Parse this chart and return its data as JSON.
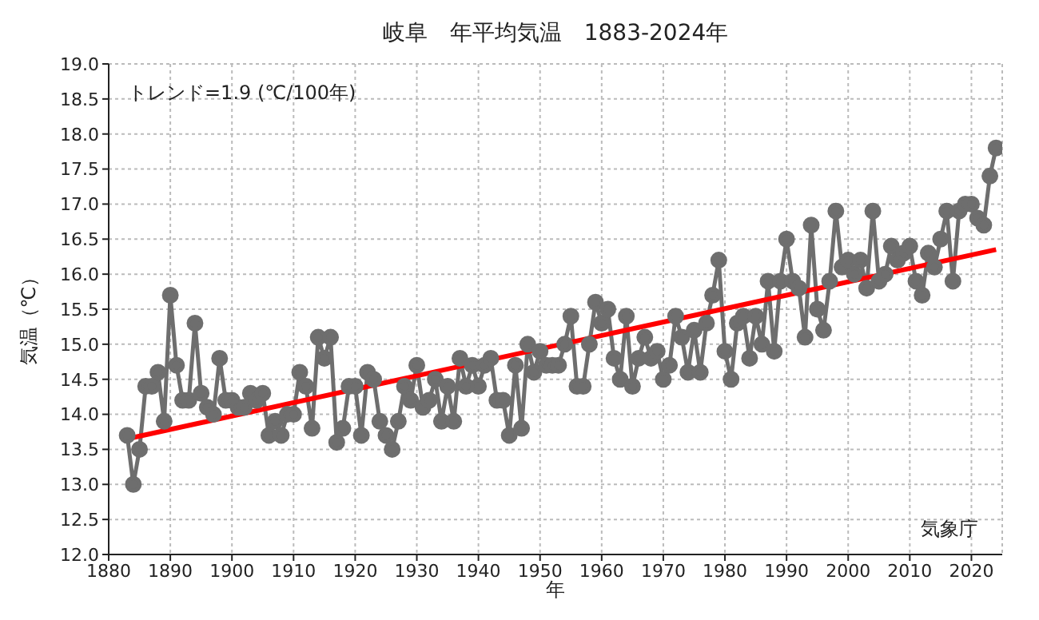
{
  "chart_data": {
    "type": "line",
    "title": "岐阜　年平均気温　1883-2024年",
    "xlabel": "年",
    "ylabel": "気温（℃）",
    "annotations": [
      "トレンド=1.9 (℃/100年)",
      "気象庁"
    ],
    "x": [
      1883,
      1884,
      1885,
      1886,
      1887,
      1888,
      1889,
      1890,
      1891,
      1892,
      1893,
      1894,
      1895,
      1896,
      1897,
      1898,
      1899,
      1900,
      1901,
      1902,
      1903,
      1904,
      1905,
      1906,
      1907,
      1908,
      1909,
      1910,
      1911,
      1912,
      1913,
      1914,
      1915,
      1916,
      1917,
      1918,
      1919,
      1920,
      1921,
      1922,
      1923,
      1924,
      1925,
      1926,
      1927,
      1928,
      1929,
      1930,
      1931,
      1932,
      1933,
      1934,
      1935,
      1936,
      1937,
      1938,
      1939,
      1940,
      1941,
      1942,
      1943,
      1944,
      1945,
      1946,
      1947,
      1948,
      1949,
      1950,
      1951,
      1952,
      1953,
      1954,
      1955,
      1956,
      1957,
      1958,
      1959,
      1960,
      1961,
      1962,
      1963,
      1964,
      1965,
      1966,
      1967,
      1968,
      1969,
      1970,
      1971,
      1972,
      1973,
      1974,
      1975,
      1976,
      1977,
      1978,
      1979,
      1980,
      1981,
      1982,
      1983,
      1984,
      1985,
      1986,
      1987,
      1988,
      1989,
      1990,
      1991,
      1992,
      1993,
      1994,
      1995,
      1996,
      1997,
      1998,
      1999,
      2000,
      2001,
      2002,
      2003,
      2004,
      2005,
      2006,
      2007,
      2008,
      2009,
      2010,
      2011,
      2012,
      2013,
      2014,
      2015,
      2016,
      2017,
      2018,
      2019,
      2020,
      2021,
      2022,
      2023,
      2024
    ],
    "series": [
      {
        "color": "#6e6e6e",
        "marker": "circle",
        "values": [
          13.7,
          13.0,
          13.5,
          14.4,
          14.4,
          14.6,
          13.9,
          15.7,
          14.7,
          14.2,
          14.2,
          15.3,
          14.3,
          14.1,
          14.0,
          14.8,
          14.2,
          14.2,
          14.1,
          14.1,
          14.3,
          14.2,
          14.3,
          13.7,
          13.9,
          13.7,
          14.0,
          14.0,
          14.6,
          14.4,
          13.8,
          15.1,
          14.8,
          15.1,
          13.6,
          13.8,
          14.4,
          14.4,
          13.7,
          14.6,
          14.5,
          13.9,
          13.7,
          13.5,
          13.9,
          14.4,
          14.2,
          14.7,
          14.1,
          14.2,
          14.5,
          13.9,
          14.4,
          13.9,
          14.8,
          14.4,
          14.7,
          14.4,
          14.7,
          14.8,
          14.2,
          14.2,
          13.7,
          14.7,
          13.8,
          15.0,
          14.6,
          14.9,
          14.7,
          14.7,
          14.7,
          15.0,
          15.4,
          14.4,
          14.4,
          15.0,
          15.6,
          15.3,
          15.5,
          14.8,
          14.5,
          15.4,
          14.4,
          14.8,
          15.1,
          14.8,
          14.9,
          14.5,
          14.7,
          15.4,
          15.1,
          14.6,
          15.2,
          14.6,
          15.3,
          15.7,
          16.2,
          14.9,
          14.5,
          15.3,
          15.4,
          14.8,
          15.4,
          15.0,
          15.9,
          14.9,
          15.9,
          16.5,
          15.9,
          15.8,
          15.1,
          16.7,
          15.5,
          15.2,
          15.9,
          16.9,
          16.1,
          16.2,
          16.0,
          16.2,
          15.8,
          16.9,
          15.9,
          16.0,
          16.4,
          16.2,
          16.3,
          16.4,
          15.9,
          15.7,
          16.3,
          16.1,
          16.5,
          16.9,
          15.9,
          16.9,
          17.0,
          17.0,
          16.8,
          16.7,
          17.4,
          17.8
        ]
      },
      {
        "type": "line",
        "color": "#ff0000",
        "marker": "none",
        "x": [
          1883,
          2024
        ],
        "values": [
          13.65,
          16.35
        ]
      }
    ],
    "xlim": [
      1880,
      2025
    ],
    "xticks": [
      1880,
      1890,
      1900,
      1910,
      1920,
      1930,
      1940,
      1950,
      1960,
      1970,
      1980,
      1990,
      2000,
      2010,
      2020
    ],
    "ylim": [
      12,
      19
    ],
    "yticks": [
      {
        "value": 12,
        "label": "12.0"
      },
      {
        "value": 12.5,
        "label": "12.5"
      },
      {
        "value": 13,
        "label": "13.0"
      },
      {
        "value": 13.5,
        "label": "13.5"
      },
      {
        "value": 14,
        "label": "14.0"
      },
      {
        "value": 14.5,
        "label": "14.5"
      },
      {
        "value": 15,
        "label": "15.0"
      },
      {
        "value": 15.5,
        "label": "15.5"
      },
      {
        "value": 16,
        "label": "16.0"
      },
      {
        "value": 16.5,
        "label": "16.5"
      },
      {
        "value": 17,
        "label": "17.0"
      },
      {
        "value": 17.5,
        "label": "17.5"
      },
      {
        "value": 18,
        "label": "18.0"
      },
      {
        "value": 18.5,
        "label": "18.5"
      },
      {
        "value": 19,
        "label": "19.0"
      }
    ],
    "grid": true,
    "line_style": "solid"
  }
}
